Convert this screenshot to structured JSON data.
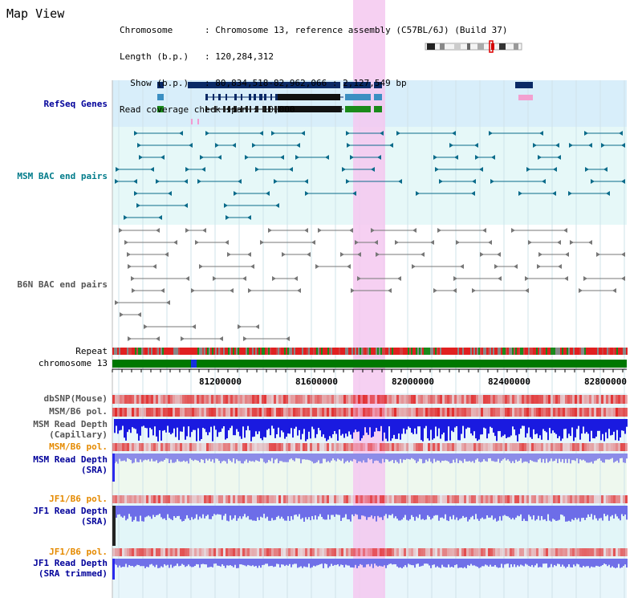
{
  "page": {
    "title": "Map View"
  },
  "header": {
    "lines": [
      "Chromosome      : Chromosome 13, reference assembly (C57BL/6J) (Build 37)",
      "Length (b.p.)   : 120,284,312",
      "  Show (b.p.)   : 80,834,518-82,962,066 : 2,127,549 bp",
      "Read coverage check span : 10,000"
    ]
  },
  "tracks": {
    "refseq": "RefSeq Genes",
    "msm_bac": "MSM BAC end pairs",
    "b6n_bac": "B6N BAC end pairs",
    "repeat": "Repeat",
    "chromosome": "chromosome 13",
    "dbsnp": "dbSNP(Mouse)",
    "msm_b6_pol_1": "MSM/B6 pol.",
    "msm_read_depth_cap_1": "MSM Read Depth",
    "msm_read_depth_cap_2": "(Capillary)",
    "msm_b6_pol_2": "MSM/B6 pol.",
    "msm_read_depth_sra_1": "MSM Read Depth",
    "msm_read_depth_sra_2": "(SRA)",
    "jf1_b6_pol_1": "JF1/B6 pol.",
    "jf1_read_depth_sra_1": "JF1 Read Depth",
    "jf1_read_depth_sra_2": "(SRA)",
    "jf1_b6_pol_2": "JF1/B6 pol.",
    "jf1_read_depth_trim_1": "JF1 Read Depth",
    "jf1_read_depth_trim_2": "(SRA trimmed)"
  },
  "axis": {
    "ticks": [
      "81200000",
      "81600000",
      "82000000",
      "82400000",
      "82800000"
    ]
  },
  "colors": {
    "highlight": "#f5c8f0",
    "refseq_bg": "#d8eefa",
    "bac_bg": "#e6f8f8",
    "gene_dark": "#0a2a66",
    "gene_mid": "#3b8fc2",
    "gene_green": "#1a8a1a",
    "bac_teal": "#0b6b8a",
    "bac_grey": "#777777",
    "chrom_green": "#007800",
    "repeat_red": "#e02020",
    "depth_blue": "#1a1ae0"
  }
}
